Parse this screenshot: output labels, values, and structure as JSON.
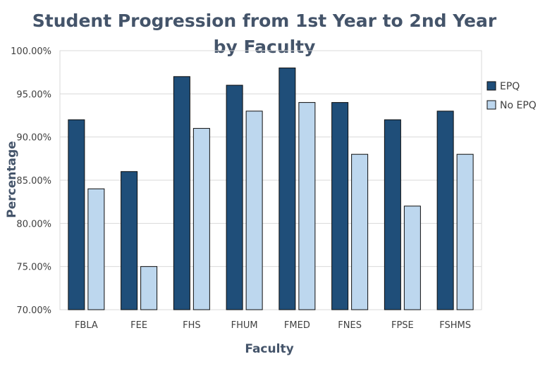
{
  "chart_data": {
    "type": "bar",
    "title_lines": [
      "Student Progression from 1st Year to 2nd Year",
      "by Faculty"
    ],
    "xlabel": "Faculty",
    "ylabel": "Percentage",
    "categories": [
      "FBLA",
      "FEE",
      "FHS",
      "FHUM",
      "FMED",
      "FNES",
      "FPSE",
      "FSHMS"
    ],
    "series": [
      {
        "name": "EPQ",
        "color": "#1f4e79",
        "values": [
          92,
          86,
          97,
          96,
          98,
          94,
          92,
          93
        ]
      },
      {
        "name": "No EPQ",
        "color": "#bdd7ee",
        "values": [
          84,
          75,
          91,
          93,
          94,
          88,
          82,
          88
        ]
      }
    ],
    "ylim": [
      70,
      100
    ],
    "yticks": [
      70,
      75,
      80,
      85,
      90,
      95,
      100
    ],
    "ytick_labels": [
      "70.00%",
      "75.00%",
      "80.00%",
      "85.00%",
      "90.00%",
      "95.00%",
      "100.00%"
    ],
    "grid": true,
    "legend_position": "right"
  }
}
